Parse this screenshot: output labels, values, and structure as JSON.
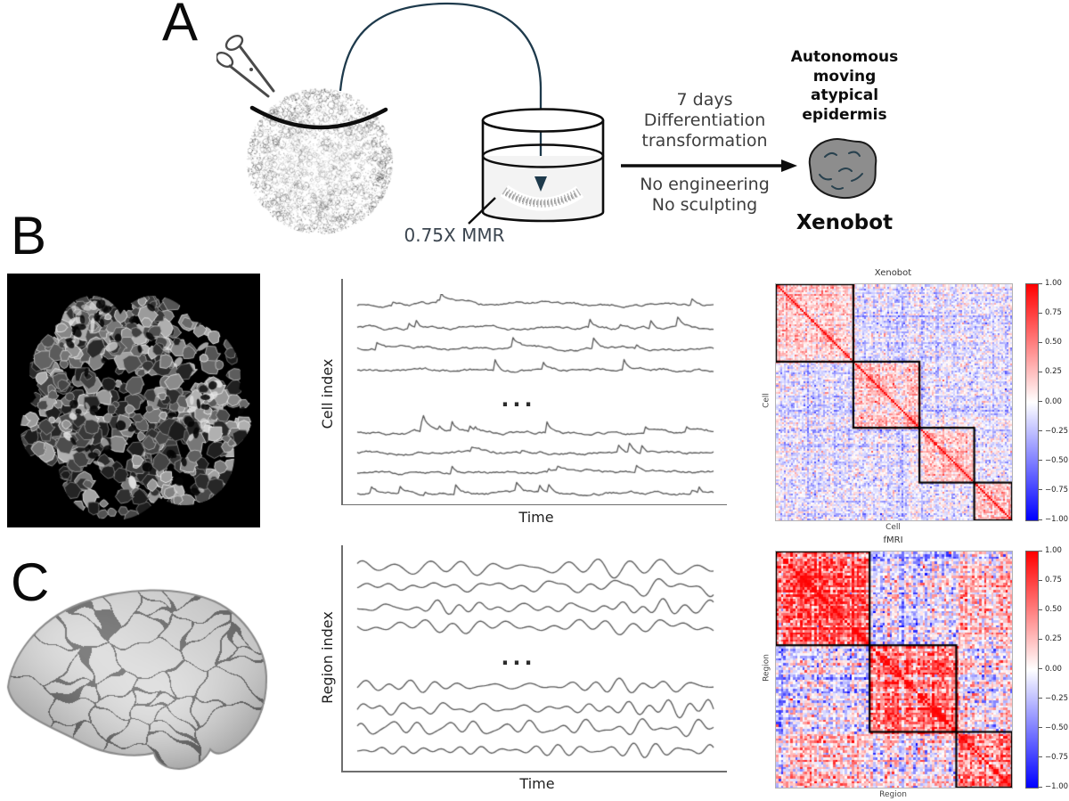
{
  "colors": {
    "connector_slate": "#1e3a4c",
    "trace_gray": "#585858",
    "heatmap_colormap_positive": "#ff0000",
    "heatmap_colormap_zero": "#ffffff",
    "heatmap_colormap_negative": "#0000ff",
    "block_outline": "#000000",
    "xenobot_blob_fill": "#8d8d8d"
  },
  "panel_a": {
    "letter": "A",
    "dish_label": "0.75X MMR",
    "process_top": [
      "7 days",
      "Differentiation",
      "transformation"
    ],
    "process_bottom": [
      "No engineering",
      "No sculpting"
    ],
    "result_lines": [
      "Autonomous",
      "moving",
      "atypical",
      "epidermis"
    ],
    "result_name": "Xenobot"
  },
  "panel_b": {
    "letter": "B",
    "plot": {
      "ylabel": "Cell index",
      "xlabel": "Time",
      "ellipsis": "..."
    },
    "heatmap": {
      "title": "Xenobot",
      "xlabel": "Cell",
      "ylabel": "Cell"
    }
  },
  "panel_c": {
    "letter": "C",
    "plot": {
      "ylabel": "Region index",
      "xlabel": "Time",
      "ellipsis": "..."
    },
    "heatmap": {
      "title": "fMRI",
      "xlabel": "Region",
      "ylabel": "Region"
    }
  },
  "chart_data": [
    {
      "id": "cell-traces",
      "type": "line",
      "title": "",
      "xlabel": "Time",
      "ylabel": "Cell index",
      "x_ticks": [],
      "y_ticks": [],
      "axes_numeric_labels_shown": false,
      "traces_top": 4,
      "traces_bottom": 4,
      "omitted_middle_marker": "...",
      "style": "spiky-calcium",
      "seed": 7
    },
    {
      "id": "region-traces",
      "type": "line",
      "title": "",
      "xlabel": "Time",
      "ylabel": "Region index",
      "x_ticks": [],
      "y_ticks": [],
      "axes_numeric_labels_shown": false,
      "traces_top": 4,
      "traces_bottom": 4,
      "omitted_middle_marker": "...",
      "style": "smooth-oscillatory",
      "seed": 11
    },
    {
      "id": "xenobot-corr",
      "type": "heatmap",
      "title": "Xenobot",
      "xlabel": "Cell",
      "ylabel": "Cell",
      "n": 132,
      "value_range": [
        -1,
        1
      ],
      "colormap": "blue-white-red",
      "colorbar_ticks": [
        1.0,
        0.75,
        0.5,
        0.25,
        0.0,
        -0.25,
        -0.5,
        -0.75,
        -1.0
      ],
      "block_boundaries_frac": [
        0,
        0.328,
        0.608,
        0.84,
        1
      ],
      "within_block_mean": 0.22,
      "between_block_mean": -0.08,
      "noise_sd": 0.17,
      "row_effect_sd": 0.08,
      "diagonal": 1,
      "seed": 3
    },
    {
      "id": "fmri-corr",
      "type": "heatmap",
      "title": "fMRI",
      "xlabel": "Region",
      "ylabel": "Region",
      "n": 100,
      "value_range": [
        -1,
        1
      ],
      "colormap": "blue-white-red",
      "colorbar_ticks": [
        1.0,
        0.75,
        0.5,
        0.25,
        0.0,
        -0.25,
        -0.5,
        -0.75,
        -1.0
      ],
      "block_boundaries_frac": [
        0,
        0.397,
        0.764,
        1
      ],
      "within_block_mean": [
        0.55,
        0.5,
        0.52
      ],
      "between_block_means": {
        "b12": -0.15,
        "b13": 0.18,
        "b23": 0.05
      },
      "noise_sd": 0.27,
      "row_effect_sd": 0.15,
      "diagonal": 1,
      "seed": 5
    }
  ]
}
